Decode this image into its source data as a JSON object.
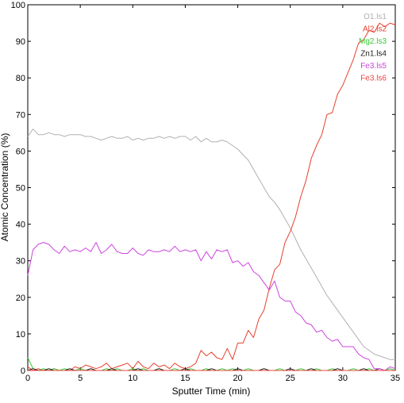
{
  "chart_data": {
    "type": "line",
    "title": "",
    "xlabel": "Sputter Time (min)",
    "ylabel": "Atomic Concentration (%)",
    "xlim": [
      0,
      35
    ],
    "ylim": [
      0,
      100
    ],
    "xticks": [
      0,
      5,
      10,
      15,
      20,
      25,
      30,
      35
    ],
    "yticks": [
      0,
      10,
      20,
      30,
      40,
      50,
      60,
      70,
      80,
      90,
      100
    ],
    "legend_position": "top-right",
    "grid": false,
    "series": [
      {
        "name": "O1.ls1",
        "color": "#b0b0b0",
        "x": [
          0,
          0.5,
          1,
          1.5,
          2,
          2.5,
          3,
          3.5,
          4,
          4.5,
          5,
          5.5,
          6,
          6.5,
          7,
          7.5,
          8,
          8.5,
          9,
          9.5,
          10,
          10.5,
          11,
          11.5,
          12,
          12.5,
          13,
          13.5,
          14,
          14.5,
          15,
          15.5,
          16,
          16.5,
          17,
          17.5,
          18,
          18.5,
          19,
          19.5,
          20,
          20.5,
          21,
          21.5,
          22,
          22.5,
          23,
          23.5,
          24,
          24.5,
          25,
          25.5,
          26,
          26.5,
          27,
          27.5,
          28,
          28.5,
          29,
          29.5,
          30,
          30.5,
          31,
          31.5,
          32,
          32.5,
          33,
          33.5,
          34,
          34.5,
          35
        ],
        "y": [
          64,
          66,
          64.5,
          64.5,
          65,
          64.5,
          64.5,
          64,
          64.5,
          64.5,
          64.5,
          64,
          64,
          63.5,
          63,
          63.5,
          64,
          63.5,
          63.5,
          64,
          63,
          63.5,
          63,
          63.5,
          63.5,
          64,
          63.5,
          64,
          63.5,
          64,
          64,
          63,
          64,
          62.5,
          63.5,
          62.5,
          62.5,
          63,
          62.5,
          61.5,
          60.5,
          59,
          57.5,
          55,
          52.5,
          50,
          47.5,
          46,
          44,
          41.5,
          39,
          36,
          33,
          30.5,
          28,
          25.5,
          23,
          20.5,
          18.5,
          16.5,
          14.5,
          12.5,
          10.5,
          8.5,
          6.5,
          5.5,
          4.5,
          4,
          3.5,
          3,
          3
        ]
      },
      {
        "name": "Al2.ls2",
        "color": "#e6402e",
        "x": [
          0,
          0.5,
          1,
          1.5,
          2,
          2.5,
          3,
          3.5,
          4,
          4.5,
          5,
          5.5,
          6,
          6.5,
          7,
          7.5,
          8,
          8.5,
          9,
          9.5,
          10,
          10.5,
          11,
          11.5,
          12,
          12.5,
          13,
          13.5,
          14,
          14.5,
          15,
          15.5,
          16,
          16.5,
          17,
          17.5,
          18,
          18.5,
          19,
          19.5,
          20,
          20.5,
          21,
          21.5,
          22,
          22.5,
          23,
          23.5,
          24,
          24.5,
          25,
          25.5,
          26,
          26.5,
          27,
          27.5,
          28,
          28.5,
          29,
          29.5,
          30,
          30.5,
          31,
          31.5,
          32,
          32.5,
          33,
          33.5,
          34,
          34.5,
          35
        ],
        "y": [
          1,
          0,
          0.5,
          0,
          0,
          0.5,
          0,
          0,
          0,
          1,
          0.5,
          1.5,
          1,
          0.5,
          1,
          2,
          0.5,
          1,
          1.5,
          2,
          0.5,
          2.5,
          1,
          0.5,
          2,
          1,
          1.5,
          0.5,
          2,
          1,
          0.5,
          1,
          2,
          5.5,
          4,
          5,
          3.5,
          3,
          6,
          3,
          7.5,
          7.5,
          11,
          9,
          14,
          16.5,
          22.5,
          27.5,
          29,
          35,
          38,
          42,
          47.5,
          52,
          58,
          61.5,
          64.5,
          70,
          70.5,
          75.5,
          78,
          81.5,
          85,
          89.5,
          90.5,
          93,
          92.5,
          95,
          94,
          95,
          94.5
        ]
      },
      {
        "name": "Mg2.ls3",
        "color": "#33cc33",
        "x": [
          0,
          0.5,
          1,
          1.5,
          2,
          2.5,
          3,
          3.5,
          4,
          4.5,
          5,
          5.5,
          6,
          6.5,
          7,
          7.5,
          8,
          8.5,
          9,
          9.5,
          10,
          10.5,
          11,
          11.5,
          12,
          12.5,
          13,
          13.5,
          14,
          14.5,
          15,
          15.5,
          16,
          16.5,
          17,
          17.5,
          18,
          18.5,
          19,
          19.5,
          20,
          20.5,
          21,
          21.5,
          22,
          22.5,
          23,
          23.5,
          24,
          24.5,
          25,
          25.5,
          26,
          26.5,
          27,
          27.5,
          28,
          28.5,
          29,
          29.5,
          30,
          30.5,
          31,
          31.5,
          32,
          32.5,
          33,
          33.5,
          34,
          34.5,
          35
        ],
        "y": [
          3.5,
          0.5,
          0,
          0.5,
          0,
          0.5,
          0,
          0.5,
          0,
          0,
          0.5,
          0,
          0.5,
          0,
          0,
          0.5,
          0,
          0.5,
          0,
          0,
          0.5,
          0,
          0.5,
          0,
          0,
          0.5,
          0,
          0,
          0.5,
          0,
          0,
          0.5,
          0,
          0,
          0.5,
          0,
          0,
          0.5,
          0,
          0.5,
          0,
          0,
          0.5,
          0,
          0,
          0.5,
          0,
          0,
          0.5,
          0,
          0,
          0,
          0.5,
          0,
          0,
          0.5,
          0,
          0,
          0.5,
          0,
          0,
          0,
          0.5,
          0,
          0,
          0.5,
          0,
          0,
          0,
          0.5,
          0
        ]
      },
      {
        "name": "Zn1.ls4",
        "color": "#222222",
        "x": [
          0,
          0.5,
          1,
          1.5,
          2,
          2.5,
          3,
          3.5,
          4,
          4.5,
          5,
          5.5,
          6,
          6.5,
          7,
          7.5,
          8,
          8.5,
          9,
          9.5,
          10,
          10.5,
          11,
          11.5,
          12,
          12.5,
          13,
          13.5,
          14,
          14.5,
          15,
          15.5,
          16,
          16.5,
          17,
          17.5,
          18,
          18.5,
          19,
          19.5,
          20,
          20.5,
          21,
          21.5,
          22,
          22.5,
          23,
          23.5,
          24,
          24.5,
          25,
          25.5,
          26,
          26.5,
          27,
          27.5,
          28,
          28.5,
          29,
          29.5,
          30,
          30.5,
          31,
          31.5,
          32,
          32.5,
          33,
          33.5,
          34,
          34.5,
          35
        ],
        "y": [
          0,
          0.5,
          0,
          0,
          0.5,
          0,
          0,
          0,
          0.5,
          0,
          0,
          0,
          0.5,
          0,
          0,
          0,
          0.5,
          0,
          0,
          0,
          0,
          0.5,
          0,
          0,
          0,
          0.5,
          0,
          0,
          0,
          0,
          0.5,
          0,
          0,
          0,
          0,
          0.5,
          0,
          0,
          0,
          0,
          0.5,
          0,
          0,
          0,
          0,
          0.5,
          0,
          0,
          0,
          0,
          0.5,
          0,
          0,
          0,
          0.5,
          0,
          0,
          0,
          0,
          0.5,
          0,
          0,
          0,
          0,
          0.5,
          0,
          0,
          0.5,
          0,
          0,
          0
        ]
      },
      {
        "name": "Fe3.ls5",
        "color": "#cc44dd",
        "x": [
          0,
          0.5,
          1,
          1.5,
          2,
          2.5,
          3,
          3.5,
          4,
          4.5,
          5,
          5.5,
          6,
          6.5,
          7,
          7.5,
          8,
          8.5,
          9,
          9.5,
          10,
          10.5,
          11,
          11.5,
          12,
          12.5,
          13,
          13.5,
          14,
          14.5,
          15,
          15.5,
          16,
          16.5,
          17,
          17.5,
          18,
          18.5,
          19,
          19.5,
          20,
          20.5,
          21,
          21.5,
          22,
          22.5,
          23,
          23.5,
          24,
          24.5,
          25,
          25.5,
          26,
          26.5,
          27,
          27.5,
          28,
          28.5,
          29,
          29.5,
          30,
          30.5,
          31,
          31.5,
          32,
          32.5,
          33,
          33.5,
          34,
          34.5,
          35
        ],
        "y": [
          26,
          33,
          34.5,
          35,
          34.5,
          33,
          32,
          34,
          32.5,
          33,
          32.5,
          33.5,
          32.5,
          35,
          32,
          33,
          34.5,
          32.5,
          32,
          32,
          33.5,
          32,
          31.5,
          33,
          32.5,
          32.5,
          33,
          32.5,
          34,
          32.5,
          33,
          32.5,
          33,
          30,
          32.5,
          30.5,
          33,
          32.5,
          33,
          29.5,
          30,
          28.5,
          29.5,
          27,
          26,
          24,
          22,
          24.5,
          20,
          19,
          19,
          16,
          15,
          13,
          12.5,
          10.5,
          11,
          9,
          8,
          8.5,
          6.5,
          6.5,
          6.5,
          4.5,
          3.5,
          3,
          0.5,
          0.5,
          0,
          1,
          0.5
        ]
      },
      {
        "name": "Fe3.ls6",
        "color": "#ee4444",
        "x": [
          0,
          0.5,
          1,
          1.5,
          2,
          2.5,
          3,
          3.5,
          4,
          4.5,
          5,
          5.5,
          6,
          6.5,
          7,
          7.5,
          8,
          8.5,
          9,
          9.5,
          10,
          10.5,
          11,
          11.5,
          12,
          12.5,
          13,
          13.5,
          14,
          14.5,
          15,
          15.5,
          16,
          16.5,
          17,
          17.5,
          18,
          18.5,
          19,
          19.5,
          20,
          20.5,
          21,
          21.5,
          22,
          22.5,
          23,
          23.5,
          24,
          24.5,
          25,
          25.5,
          26,
          26.5,
          27,
          27.5,
          28,
          28.5,
          29,
          29.5,
          30,
          30.5,
          31,
          31.5,
          32,
          32.5,
          33,
          33.5,
          34,
          34.5,
          35
        ],
        "y": [
          0,
          0,
          0,
          0,
          0,
          0,
          0,
          0,
          0,
          0,
          0,
          0,
          0,
          0,
          0,
          0,
          0,
          0,
          0,
          0,
          0,
          0,
          0,
          0,
          0,
          0,
          0,
          0,
          0,
          0,
          0,
          0,
          0,
          0,
          0,
          0,
          0,
          0,
          0,
          0,
          0,
          0,
          0,
          0,
          0,
          0,
          0,
          0,
          0,
          0,
          0,
          0,
          0,
          0,
          0,
          0,
          0,
          0,
          0,
          0,
          0,
          0,
          0,
          0,
          0,
          0,
          0,
          0,
          0,
          0,
          0
        ]
      }
    ]
  }
}
